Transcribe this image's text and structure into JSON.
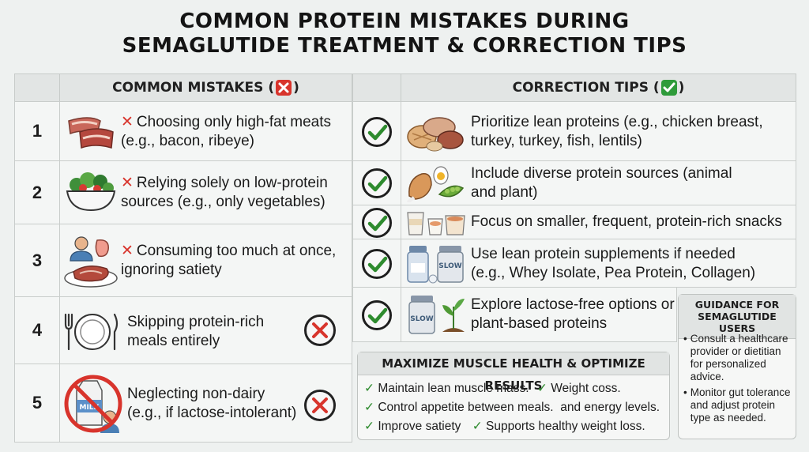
{
  "title": {
    "line1": "COMMON PROTEIN MISTAKES DURING",
    "line2": "SEMAGLUTIDE TREATMENT & CORRECTION TIPS"
  },
  "mistakes_header": "COMMON MISTAKES (",
  "tips_header": "CORRECTION TIPS (",
  "colors": {
    "x_red": "#d8342c",
    "check_green": "#2e8b2e",
    "background": "#eef1f0"
  },
  "mistakes": [
    {
      "num": "1",
      "prefix_x": "✕",
      "line1": "Choosing only high-fat meats",
      "line2": "(e.g., bacon, ribeye)",
      "icon": "bacon-steak-icon"
    },
    {
      "num": "2",
      "prefix_x": "✕",
      "line1": "Relying solely on low-protein",
      "line2": "sources (e.g., only vegetables)",
      "icon": "salad-bowl-icon"
    },
    {
      "num": "3",
      "prefix_x": "✕",
      "line1": "Consuming too much at once,",
      "line2": "ignoring satiety",
      "icon": "person-stomach-steak-icon"
    },
    {
      "num": "4",
      "prefix_x": "",
      "line1": "Skipping protein-rich",
      "line2": "meals entirely",
      "icon": "empty-plate-icon"
    },
    {
      "num": "5",
      "prefix_x": "",
      "line1": "Neglecting non-dairy",
      "line2": "(e.g., if lactose-intolerant)",
      "icon": "no-milk-icon"
    }
  ],
  "tips": [
    {
      "line1": "Prioritize lean proteins (e.g., chicken breast,",
      "line2": "turkey, turkey, fish, lentils)",
      "icon": "lean-meats-icon"
    },
    {
      "line1": "Include diverse protein sources (animal",
      "line2": "and plant)",
      "icon": "egg-chicken-peas-icon"
    },
    {
      "line1": "Focus on smaller, frequent, protein-rich snacks",
      "line2": "",
      "icon": "snack-cups-icon"
    },
    {
      "line1": "Use lean protein supplements if needed",
      "line2": "(e.g., Whey Isolate, Pea Protein, Collagen)",
      "icon": "supplement-jars-icon"
    },
    {
      "line1": "Explore lactose-free options or",
      "line2": "plant-based proteins",
      "icon": "slow-jar-plant-icon"
    }
  ],
  "jar_label": "SLOW",
  "milk_label": "MILK",
  "maximize": {
    "title": "MAXIMIZE MUSCLE HEALTH & OPTIMIZE RESULTS",
    "row1a": "Maintain lean muscle mass.",
    "row1b": "Weight coss.",
    "row2a": "Control appetite between meals.",
    "row2b": "and energy levels.",
    "row3a": "Improve satiety",
    "row3b": "Supports healthy weight loss."
  },
  "guidance": {
    "title_line1": "GUIDANCE FOR",
    "title_line2": "SEMAGLUTIDE USERS",
    "item1": "Consult a healthcare provider or dietitian for personalized advice.",
    "item2": "Monitor gut tolerance and adjust protein type as needed."
  }
}
